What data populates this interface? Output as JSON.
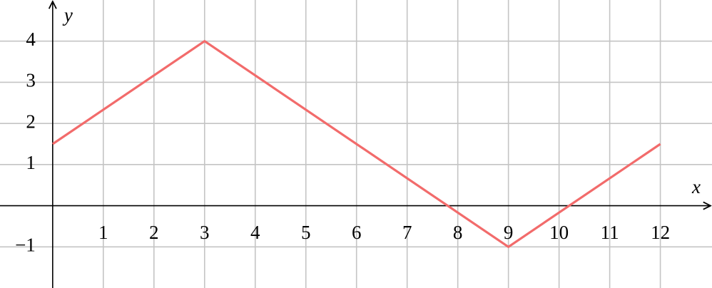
{
  "chart_data": {
    "type": "line",
    "x_label": "x",
    "y_label": "y",
    "x": [
      0,
      3,
      9,
      12
    ],
    "series": [
      {
        "color": "#f26b6b",
        "values": [
          1.5,
          4,
          -1,
          1.5
        ]
      }
    ],
    "xlim": [
      -1.04,
      13.02
    ],
    "ylim": [
      -2,
      5
    ],
    "xticks": [
      1,
      2,
      3,
      4,
      5,
      6,
      7,
      8,
      9,
      10,
      11,
      12
    ],
    "yticks": [
      {
        "value": -1,
        "label": "−1"
      },
      1,
      2,
      3,
      4
    ],
    "grid": true
  }
}
